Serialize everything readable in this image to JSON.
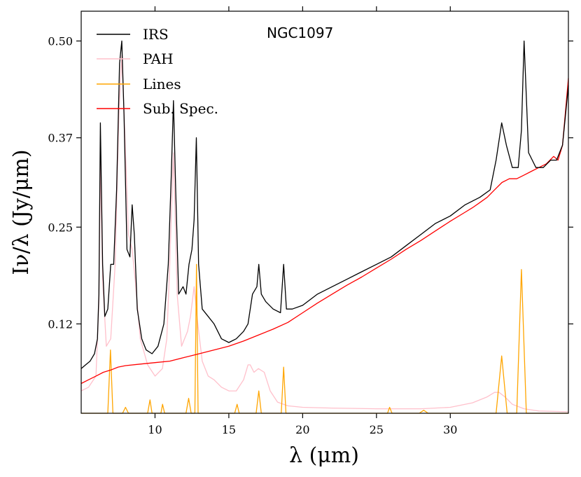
{
  "chart_data": {
    "type": "line",
    "title": "NGC1097",
    "xlabel": "λ (μm)",
    "ylabel": "Iν/λ (Jy/μm)",
    "xlim": [
      5.0,
      38.0
    ],
    "ylim": [
      0.0,
      0.54
    ],
    "x_ticks": [
      10,
      15,
      20,
      25,
      30
    ],
    "x_tick_labels": [
      "10",
      "15",
      "20",
      "25",
      "30"
    ],
    "y_ticks": [
      0.12,
      0.25,
      0.37,
      0.5
    ],
    "y_tick_labels": [
      "0.12",
      "0.25",
      "0.37",
      "0.50"
    ],
    "legend_position": "top-left",
    "series": [
      {
        "name": "IRS",
        "color": "#000000",
        "x": [
          5.0,
          5.3,
          5.6,
          5.9,
          6.1,
          6.2,
          6.3,
          6.45,
          6.6,
          6.8,
          7.0,
          7.2,
          7.4,
          7.6,
          7.75,
          7.9,
          8.1,
          8.3,
          8.45,
          8.6,
          8.8,
          9.1,
          9.4,
          9.8,
          10.2,
          10.6,
          10.9,
          11.1,
          11.25,
          11.4,
          11.6,
          11.9,
          12.1,
          12.3,
          12.5,
          12.65,
          12.8,
          12.95,
          13.2,
          13.6,
          14.0,
          14.5,
          15.0,
          15.5,
          16.0,
          16.3,
          16.6,
          16.9,
          17.03,
          17.2,
          17.5,
          18.0,
          18.5,
          18.71,
          18.9,
          19.3,
          20.0,
          21.0,
          22.0,
          23.0,
          24.0,
          25.0,
          26.0,
          27.0,
          28.0,
          29.0,
          30.0,
          31.0,
          32.0,
          32.7,
          33.1,
          33.48,
          33.8,
          34.2,
          34.6,
          34.82,
          35.0,
          35.3,
          35.8,
          36.3,
          36.8,
          37.2,
          37.6,
          38.0
        ],
        "y": [
          0.06,
          0.065,
          0.07,
          0.08,
          0.1,
          0.16,
          0.39,
          0.2,
          0.13,
          0.14,
          0.2,
          0.2,
          0.3,
          0.47,
          0.5,
          0.4,
          0.22,
          0.21,
          0.28,
          0.24,
          0.14,
          0.1,
          0.085,
          0.08,
          0.09,
          0.12,
          0.2,
          0.32,
          0.42,
          0.3,
          0.16,
          0.17,
          0.16,
          0.2,
          0.22,
          0.26,
          0.37,
          0.2,
          0.14,
          0.13,
          0.12,
          0.1,
          0.095,
          0.1,
          0.11,
          0.12,
          0.16,
          0.17,
          0.2,
          0.16,
          0.15,
          0.14,
          0.135,
          0.2,
          0.14,
          0.14,
          0.145,
          0.16,
          0.17,
          0.18,
          0.19,
          0.2,
          0.21,
          0.225,
          0.24,
          0.255,
          0.265,
          0.28,
          0.29,
          0.3,
          0.34,
          0.39,
          0.36,
          0.33,
          0.33,
          0.38,
          0.5,
          0.35,
          0.33,
          0.33,
          0.34,
          0.34,
          0.36,
          0.44
        ]
      },
      {
        "name": "PAH",
        "color": "#ffc0cb",
        "x": [
          5.0,
          5.5,
          6.0,
          6.2,
          6.3,
          6.45,
          6.7,
          7.0,
          7.3,
          7.55,
          7.75,
          7.95,
          8.2,
          8.45,
          8.65,
          9.0,
          9.5,
          10.0,
          10.5,
          10.8,
          11.0,
          11.25,
          11.5,
          11.8,
          12.0,
          12.2,
          12.4,
          12.65,
          12.9,
          13.2,
          13.6,
          14.0,
          14.5,
          15.0,
          15.5,
          16.0,
          16.3,
          16.45,
          16.7,
          17.0,
          17.4,
          17.8,
          18.3,
          19.0,
          20.0,
          22.0,
          25.0,
          28.0,
          30.0,
          31.5,
          32.5,
          33.0,
          33.3,
          33.7,
          34.2,
          35.0,
          36.0,
          38.0
        ],
        "y": [
          0.03,
          0.035,
          0.05,
          0.15,
          0.34,
          0.18,
          0.09,
          0.1,
          0.2,
          0.4,
          0.48,
          0.38,
          0.24,
          0.22,
          0.18,
          0.1,
          0.065,
          0.05,
          0.06,
          0.1,
          0.2,
          0.35,
          0.16,
          0.09,
          0.1,
          0.11,
          0.13,
          0.17,
          0.12,
          0.07,
          0.05,
          0.045,
          0.035,
          0.03,
          0.03,
          0.045,
          0.065,
          0.065,
          0.055,
          0.06,
          0.055,
          0.03,
          0.015,
          0.01,
          0.008,
          0.007,
          0.006,
          0.006,
          0.008,
          0.014,
          0.022,
          0.028,
          0.028,
          0.022,
          0.012,
          0.006,
          0.003,
          0.002
        ]
      },
      {
        "name": "Lines",
        "color": "#ffa500",
        "x": [
          5.0,
          6.8,
          6.98,
          7.15,
          7.8,
          8.0,
          8.2,
          9.5,
          9.66,
          9.8,
          10.4,
          10.51,
          10.65,
          12.1,
          12.28,
          12.45,
          12.7,
          12.81,
          12.92,
          15.4,
          15.56,
          15.7,
          16.85,
          17.03,
          17.2,
          18.55,
          18.71,
          18.87,
          25.75,
          25.89,
          26.05,
          27.9,
          28.2,
          28.5,
          33.1,
          33.48,
          33.85,
          34.5,
          34.82,
          35.15,
          38.0
        ],
        "y": [
          0.0,
          0.0,
          0.085,
          0.0,
          0.0,
          0.008,
          0.0,
          0.0,
          0.018,
          0.0,
          0.0,
          0.012,
          0.0,
          0.0,
          0.02,
          0.0,
          0.0,
          0.2,
          0.0,
          0.0,
          0.012,
          0.0,
          0.0,
          0.03,
          0.0,
          0.0,
          0.062,
          0.0,
          0.0,
          0.008,
          0.0,
          0.0,
          0.004,
          0.0,
          0.0,
          0.077,
          0.0,
          0.0,
          0.193,
          0.0,
          0.0
        ]
      },
      {
        "name": "Sub. Spec.",
        "color": "#ff0000",
        "x": [
          5.0,
          5.5,
          6.0,
          6.5,
          7.0,
          7.5,
          8.0,
          9.0,
          10.0,
          11.0,
          12.0,
          13.0,
          14.0,
          15.0,
          16.0,
          17.0,
          18.0,
          19.0,
          20.0,
          21.0,
          22.0,
          23.0,
          24.0,
          25.0,
          26.0,
          27.0,
          28.0,
          29.0,
          30.0,
          31.0,
          31.5,
          32.0,
          32.5,
          33.0,
          33.5,
          34.0,
          34.5,
          35.0,
          35.5,
          36.0,
          36.5,
          37.0,
          37.3,
          37.6,
          38.0
        ],
        "y": [
          0.04,
          0.045,
          0.05,
          0.055,
          0.058,
          0.062,
          0.064,
          0.066,
          0.068,
          0.07,
          0.075,
          0.08,
          0.085,
          0.09,
          0.097,
          0.105,
          0.113,
          0.122,
          0.135,
          0.148,
          0.16,
          0.172,
          0.183,
          0.195,
          0.207,
          0.22,
          0.232,
          0.245,
          0.258,
          0.27,
          0.276,
          0.283,
          0.29,
          0.3,
          0.31,
          0.315,
          0.315,
          0.32,
          0.325,
          0.33,
          0.335,
          0.345,
          0.34,
          0.36,
          0.45
        ]
      }
    ]
  }
}
